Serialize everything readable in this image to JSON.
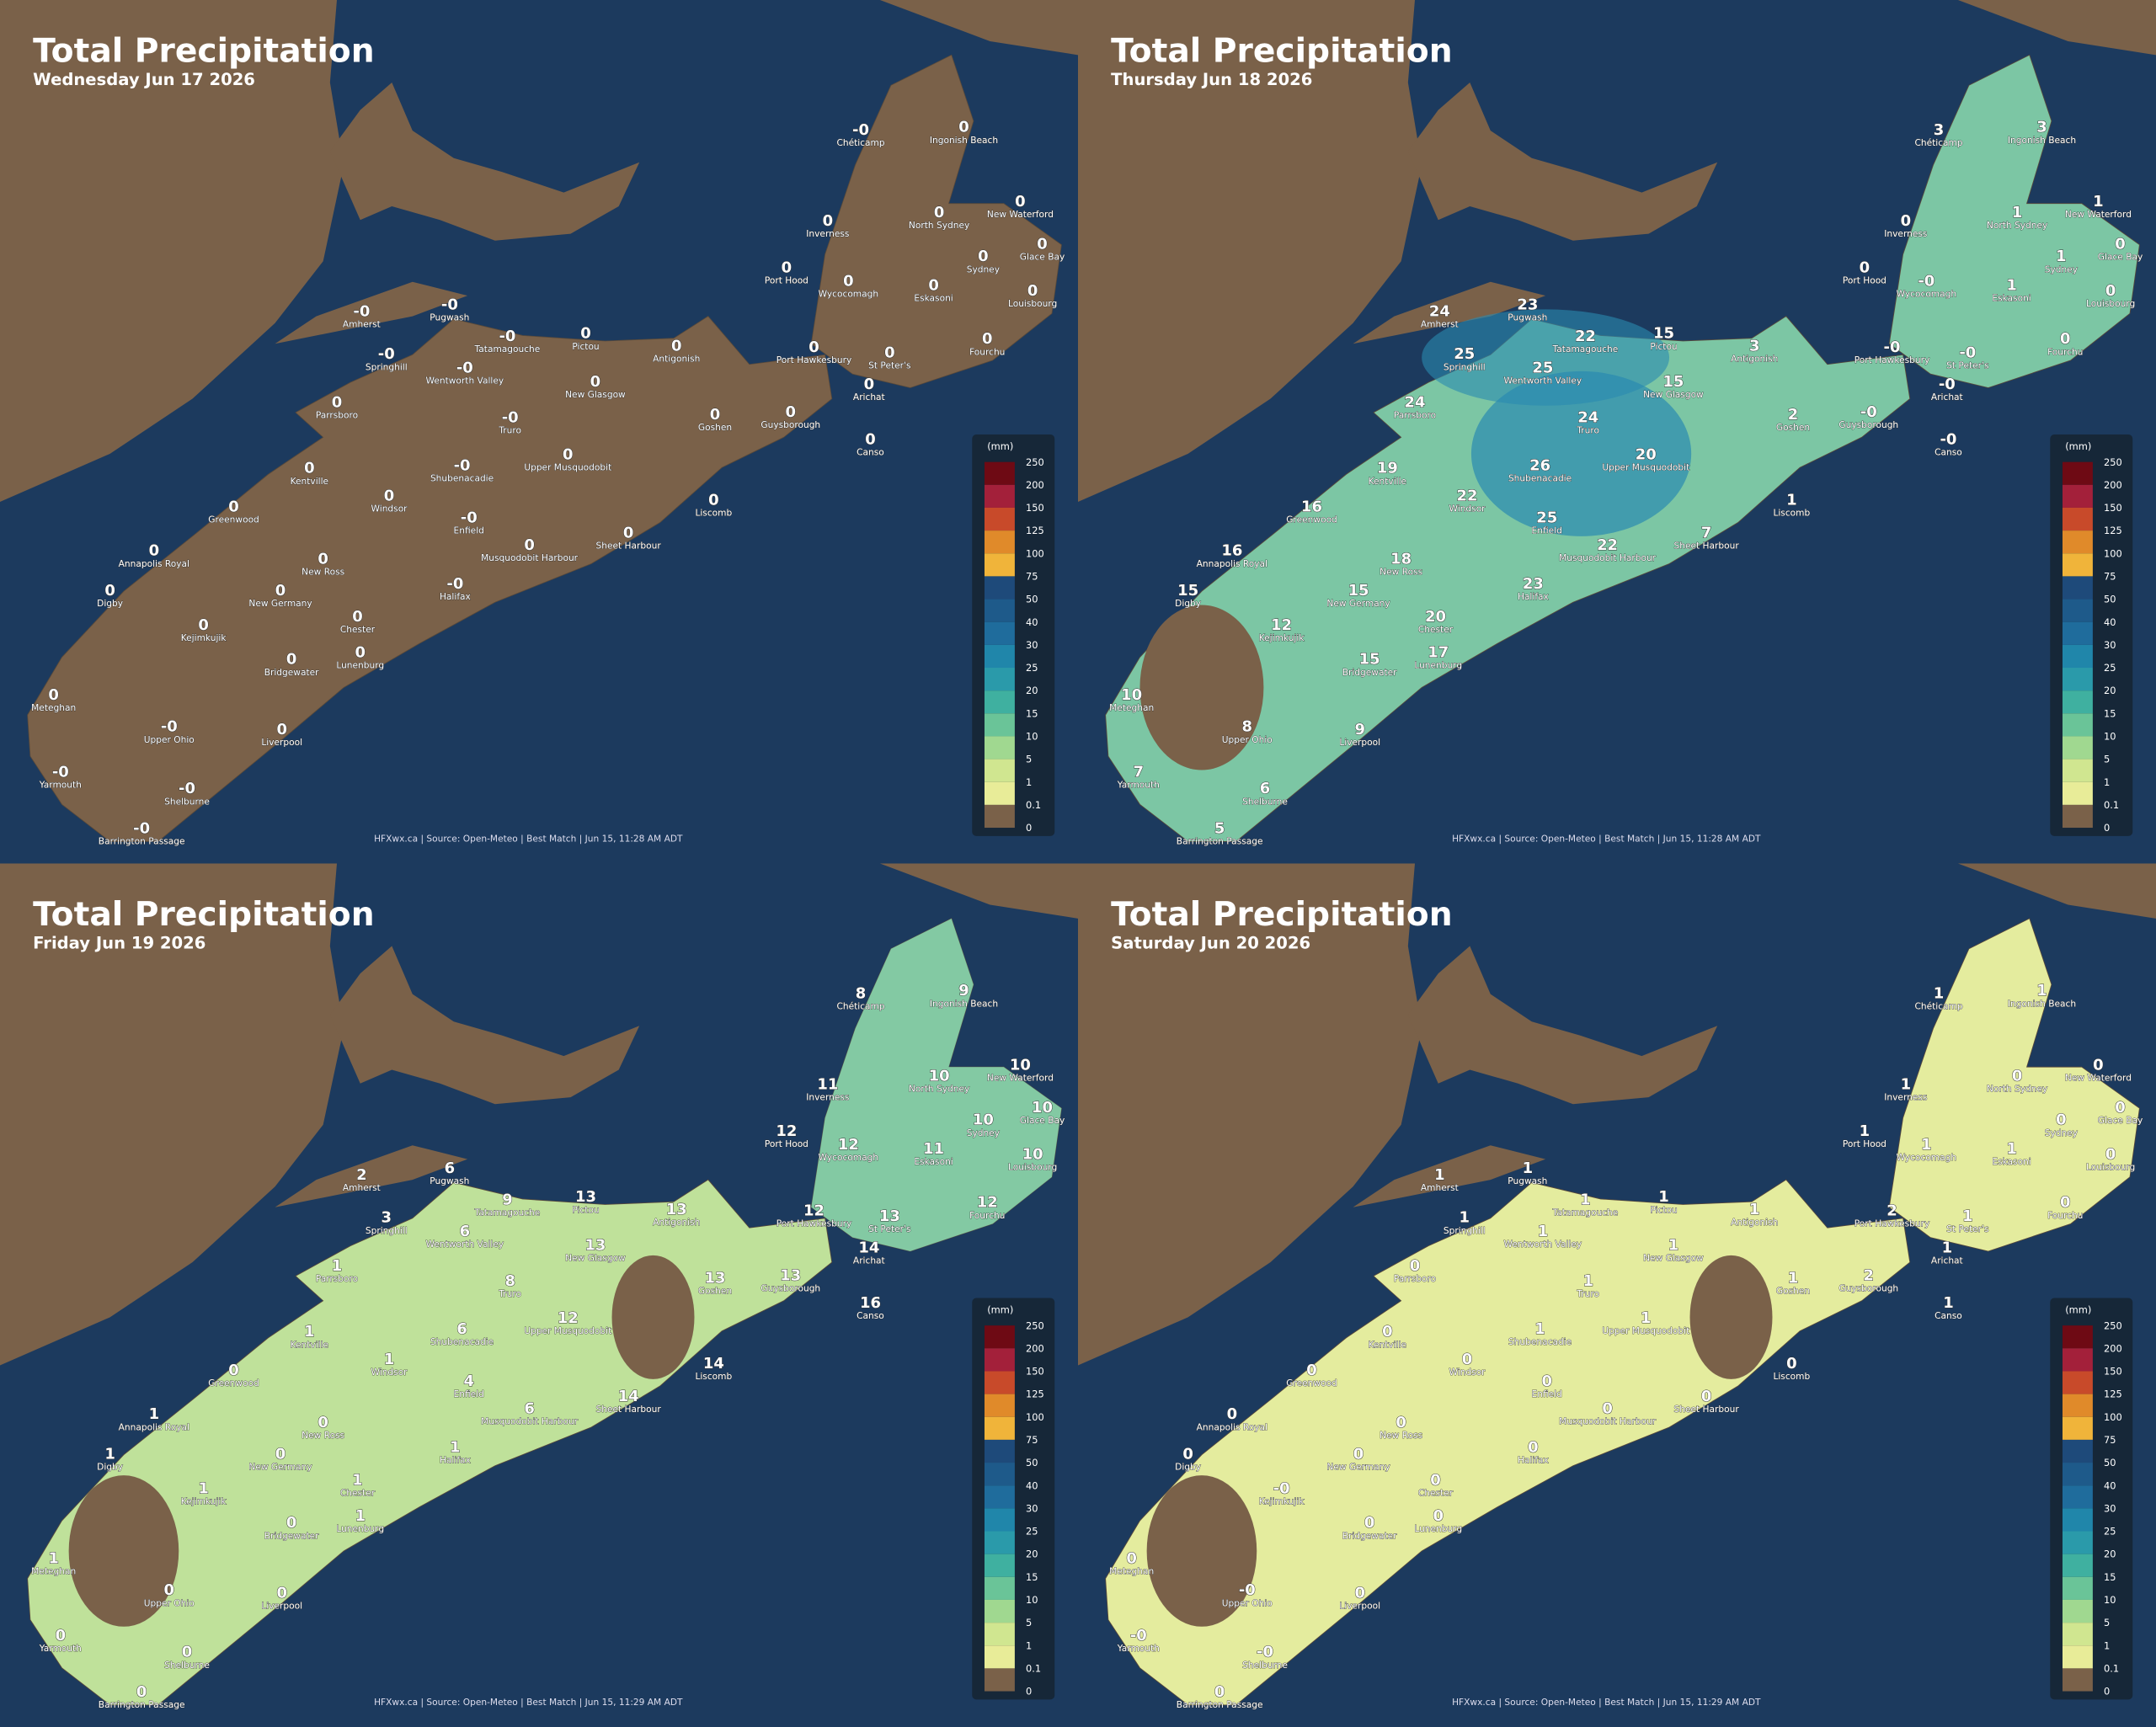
{
  "cities": [
    "Chéticamp",
    "Ingonish Beach",
    "Inverness",
    "North Sydney",
    "New Waterford",
    "Glace Bay",
    "Sydney",
    "Port Hood",
    "Wycocomagh",
    "Eskasoni",
    "Louisbourg",
    "Amherst",
    "Pugwash",
    "Tatamagouche",
    "Pictou",
    "Antigonish",
    "Springhill",
    "Wentworth Valley",
    "Port Hawkesbury",
    "St Peter's",
    "Fourchu",
    "New Glasgow",
    "Arichat",
    "Parrsboro",
    "Truro",
    "Goshen",
    "Guysborough",
    "Canso",
    "Kentville",
    "Shubenacadie",
    "Upper Musquodobit",
    "Windsor",
    "Liscomb",
    "Greenwood",
    "Enfield",
    "Sheet Harbour",
    "Musquodobit Harbour",
    "Annapolis Royal",
    "New Ross",
    "Halifax",
    "Digby",
    "New Germany",
    "Chester",
    "Kejimkujik",
    "Lunenburg",
    "Bridgewater",
    "Meteghan",
    "Upper Ohio",
    "Liverpool",
    "Yarmouth",
    "Shelburne",
    "Barrington Passage"
  ],
  "legend": {
    "unit": "(mm)",
    "labels": [
      250,
      200,
      150,
      125,
      100,
      75,
      50,
      40,
      30,
      25,
      20,
      15,
      10,
      5,
      1,
      0.1,
      0
    ]
  },
  "panels": [
    {
      "title": "Total Precipitation",
      "date": "Wednesday Jun 17 2026",
      "footer": "HFXwx.ca | Source: Open-Meteo | Best Match | Jun 15, 11:28 AM ADT",
      "values": [
        "-0",
        "0",
        "0",
        "0",
        "0",
        "0",
        "0",
        "0",
        "0",
        "0",
        "0",
        "-0",
        "-0",
        "-0",
        "0",
        "0",
        "-0",
        "-0",
        "0",
        "0",
        "0",
        "0",
        "0",
        "0",
        "-0",
        "0",
        "0",
        "0",
        "0",
        "-0",
        "0",
        "0",
        "0",
        "0",
        "-0",
        "0",
        "0",
        "0",
        "0",
        "-0",
        "0",
        "0",
        "0",
        "0",
        "0",
        "0",
        "0",
        "-0",
        "0",
        "-0",
        "-0",
        "-0"
      ]
    },
    {
      "title": "Total Precipitation",
      "date": "Thursday Jun 18 2026",
      "footer": "HFXwx.ca | Source: Open-Meteo | Best Match | Jun 15, 11:28 AM ADT",
      "values": [
        "3",
        "3",
        "0",
        "1",
        "1",
        "0",
        "1",
        "0",
        "-0",
        "1",
        "0",
        "24",
        "23",
        "22",
        "15",
        "3",
        "25",
        "25",
        "-0",
        "-0",
        "0",
        "15",
        "-0",
        "24",
        "24",
        "2",
        "-0",
        "-0",
        "19",
        "26",
        "20",
        "22",
        "1",
        "16",
        "25",
        "7",
        "22",
        "16",
        "18",
        "23",
        "15",
        "15",
        "20",
        "12",
        "17",
        "15",
        "10",
        "8",
        "9",
        "7",
        "6",
        "5"
      ]
    },
    {
      "title": "Total Precipitation",
      "date": "Friday Jun 19 2026",
      "footer": "HFXwx.ca | Source: Open-Meteo | Best Match | Jun 15, 11:29 AM ADT",
      "values": [
        "8",
        "9",
        "11",
        "10",
        "10",
        "10",
        "10",
        "12",
        "12",
        "11",
        "10",
        "2",
        "6",
        "9",
        "13",
        "13",
        "3",
        "6",
        "12",
        "13",
        "12",
        "13",
        "14",
        "1",
        "8",
        "13",
        "13",
        "16",
        "1",
        "6",
        "12",
        "1",
        "14",
        "0",
        "4",
        "14",
        "6",
        "1",
        "0",
        "1",
        "1",
        "0",
        "1",
        "1",
        "1",
        "0",
        "1",
        "0",
        "0",
        "0",
        "0",
        "0"
      ]
    },
    {
      "title": "Total Precipitation",
      "date": "Saturday Jun 20 2026",
      "footer": "HFXwx.ca | Source: Open-Meteo | Best Match | Jun 15, 11:29 AM ADT",
      "values": [
        "1",
        "1",
        "1",
        "0",
        "0",
        "0",
        "0",
        "1",
        "1",
        "1",
        "0",
        "1",
        "1",
        "1",
        "1",
        "1",
        "1",
        "1",
        "2",
        "1",
        "0",
        "1",
        "1",
        "0",
        "1",
        "1",
        "2",
        "1",
        "0",
        "1",
        "1",
        "0",
        "0",
        "0",
        "0",
        "0",
        "0",
        "0",
        "0",
        "0",
        "0",
        "0",
        "0",
        "-0",
        "0",
        "0",
        "0",
        "-0",
        "0",
        "-0",
        "-0",
        "0"
      ]
    }
  ]
}
